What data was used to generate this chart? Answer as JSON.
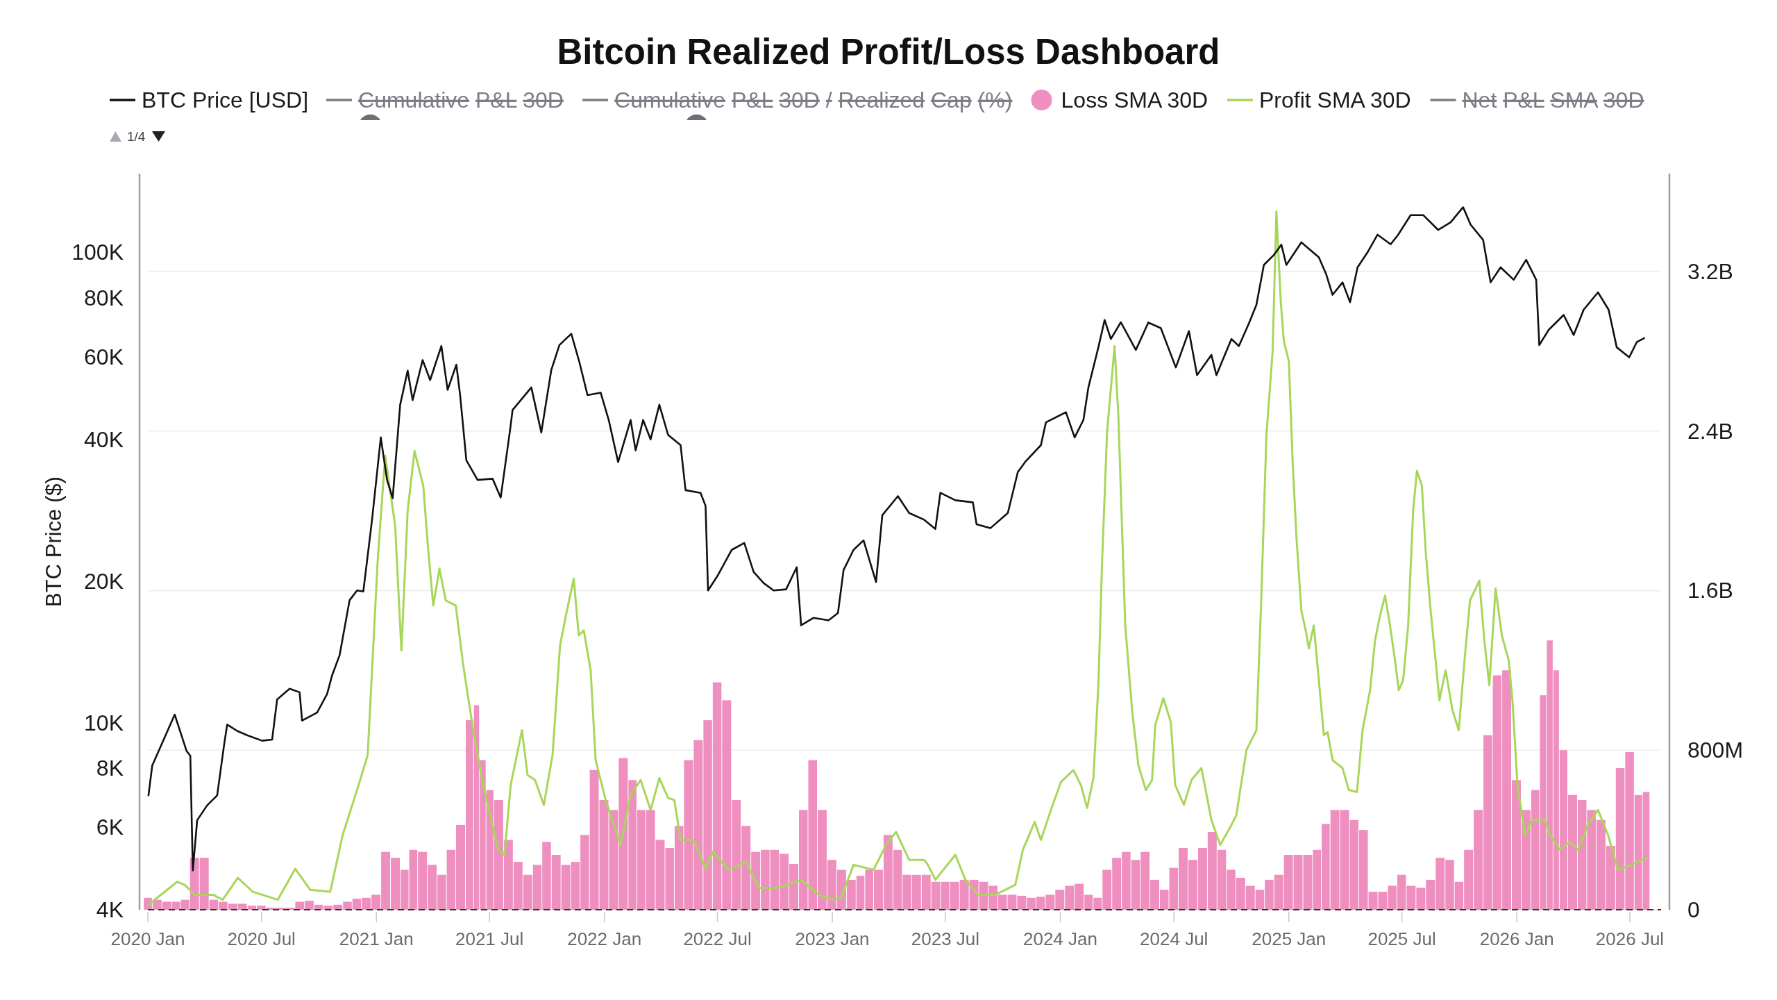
{
  "chart_data": {
    "type": "line",
    "title": "Bitcoin Realized Profit/Loss Dashboard",
    "ylabel": "BTC Price ($)",
    "legend": "top",
    "grid": "y2",
    "log": "y",
    "xlim": [
      "2020-01-01",
      "2026-08-20"
    ],
    "xticks": [
      {
        "value": "2020-01",
        "label": "2020 Jan"
      },
      {
        "value": "2020-07",
        "label": "2020 Jul"
      },
      {
        "value": "2021-01",
        "label": "2021 Jan"
      },
      {
        "value": "2021-07",
        "label": "2021 Jul"
      },
      {
        "value": "2022-01",
        "label": "2022 Jan"
      },
      {
        "value": "2022-07",
        "label": "2022 Jul"
      },
      {
        "value": "2023-01",
        "label": "2023 Jan"
      },
      {
        "value": "2023-07",
        "label": "2023 Jul"
      },
      {
        "value": "2024-01",
        "label": "2024 Jan"
      },
      {
        "value": "2024-07",
        "label": "2024 Jul"
      },
      {
        "value": "2025-01",
        "label": "2025 Jan"
      },
      {
        "value": "2025-07",
        "label": "2025 Jul"
      },
      {
        "value": "2026-01",
        "label": "2026 Jan"
      },
      {
        "value": "2026-07",
        "label": "2026 Jul"
      }
    ],
    "ylim": [
      4000,
      147000
    ],
    "yticks": [
      {
        "value": 4000,
        "label": "4K"
      },
      {
        "value": 6000,
        "label": "6K"
      },
      {
        "value": 8000,
        "label": "8K"
      },
      {
        "value": 10000,
        "label": "10K"
      },
      {
        "value": 20000,
        "label": "20K"
      },
      {
        "value": 40000,
        "label": "40K"
      },
      {
        "value": 60000,
        "label": "60K"
      },
      {
        "value": 80000,
        "label": "80K"
      },
      {
        "value": 100000,
        "label": "100K"
      }
    ],
    "y2lim": [
      0,
      3690000000
    ],
    "y2ticks": [
      0,
      {
        "value": 800000000,
        "label": "800M"
      },
      {
        "value": 1600000000,
        "label": "1.6B"
      },
      {
        "value": 2400000000,
        "label": "2.4B"
      },
      {
        "value": 3200000000,
        "label": "3.2B"
      }
    ],
    "ref_lines": [
      {
        "axis": "y2",
        "value": 0,
        "line_style": "dashed",
        "color": "#333333"
      }
    ],
    "annotations": [
      "1/4"
    ],
    "series": [
      {
        "name": "BTC Price [USD]",
        "color": "#111111",
        "x": [
          "2020-01-02",
          "2020-01-08",
          "2020-02-13",
          "2020-03-03",
          "2020-03-09",
          "2020-03-13",
          "2020-03-20",
          "2020-04-05",
          "2020-04-21",
          "2020-05-02",
          "2020-05-07",
          "2020-05-23",
          "2020-06-08",
          "2020-07-02",
          "2020-07-18",
          "2020-07-26",
          "2020-08-15",
          "2020-08-31",
          "2020-09-04",
          "2020-09-28",
          "2020-10-14",
          "2020-10-22",
          "2020-11-03",
          "2020-11-19",
          "2020-12-01",
          "2020-12-11",
          "2020-12-25",
          "2021-01-08",
          "2021-01-18",
          "2021-01-27",
          "2021-02-08",
          "2021-02-20",
          "2021-02-28",
          "2021-03-16",
          "2021-03-28",
          "2021-04-15",
          "2021-04-25",
          "2021-05-09",
          "2021-05-15",
          "2021-05-25",
          "2021-06-12",
          "2021-07-06",
          "2021-07-19",
          "2021-08-03",
          "2021-08-07",
          "2021-08-23",
          "2021-09-06",
          "2021-09-22",
          "2021-10-08",
          "2021-10-21",
          "2021-11-09",
          "2021-11-22",
          "2021-12-05",
          "2021-12-26",
          "2022-01-08",
          "2022-01-23",
          "2022-02-12",
          "2022-02-20",
          "2022-03-04",
          "2022-03-16",
          "2022-03-30",
          "2022-04-13",
          "2022-05-03",
          "2022-05-11",
          "2022-06-04",
          "2022-06-12",
          "2022-06-16",
          "2022-07-02",
          "2022-07-24",
          "2022-08-13",
          "2022-08-28",
          "2022-09-13",
          "2022-09-29",
          "2022-10-19",
          "2022-11-05",
          "2022-11-12",
          "2022-12-02",
          "2022-12-26",
          "2023-01-10",
          "2023-01-19",
          "2023-02-04",
          "2023-02-20",
          "2023-03-12",
          "2023-03-22",
          "2023-04-16",
          "2023-05-04",
          "2023-05-28",
          "2023-06-15",
          "2023-06-23",
          "2023-07-17",
          "2023-08-14",
          "2023-08-20",
          "2023-09-11",
          "2023-10-09",
          "2023-10-25",
          "2023-11-07",
          "2023-12-01",
          "2023-12-09",
          "2024-01-10",
          "2024-01-24",
          "2024-02-07",
          "2024-02-15",
          "2024-03-02",
          "2024-03-12",
          "2024-03-22",
          "2024-04-07",
          "2024-05-01",
          "2024-05-21",
          "2024-06-10",
          "2024-07-04",
          "2024-07-25",
          "2024-08-07",
          "2024-08-30",
          "2024-09-07",
          "2024-10-01",
          "2024-10-13",
          "2024-10-29",
          "2024-11-10",
          "2024-11-22",
          "2024-12-08",
          "2024-12-20",
          "2024-12-28",
          "2025-01-21",
          "2025-02-18",
          "2025-03-02",
          "2025-03-12",
          "2025-03-28",
          "2025-04-09",
          "2025-04-21",
          "2025-05-07",
          "2025-05-23",
          "2025-06-13",
          "2025-06-25",
          "2025-07-15",
          "2025-08-04",
          "2025-08-28",
          "2025-09-17",
          "2025-10-07",
          "2025-10-19",
          "2025-11-08",
          "2025-11-20",
          "2025-12-06",
          "2025-12-27",
          "2026-01-16",
          "2026-02-01",
          "2026-02-06",
          "2026-02-21",
          "2026-03-17",
          "2026-04-02",
          "2026-04-18",
          "2026-05-11",
          "2026-05-28",
          "2026-06-10",
          "2026-06-30",
          "2026-07-12",
          "2026-07-24"
        ],
        "values": [
          7000,
          8100,
          10400,
          8700,
          8500,
          4850,
          6200,
          6670,
          7000,
          8950,
          9900,
          9600,
          9400,
          9150,
          9200,
          11200,
          11800,
          11600,
          10100,
          10500,
          11500,
          12600,
          13900,
          18200,
          19100,
          19000,
          27000,
          40400,
          32800,
          30000,
          47400,
          56000,
          48500,
          59000,
          53500,
          63200,
          51000,
          57700,
          49700,
          36100,
          32800,
          33000,
          30100,
          41900,
          46200,
          49000,
          51600,
          41400,
          56200,
          63500,
          67100,
          58400,
          49700,
          50300,
          44000,
          35800,
          44000,
          37900,
          44000,
          40000,
          47400,
          40900,
          38900,
          31200,
          30800,
          28900,
          19100,
          20600,
          23300,
          24100,
          20900,
          19800,
          19100,
          19200,
          21400,
          16100,
          16700,
          16500,
          17100,
          21100,
          23300,
          24400,
          19900,
          27600,
          30300,
          27900,
          27000,
          25800,
          30800,
          29700,
          29400,
          26400,
          25900,
          27900,
          34100,
          36000,
          38900,
          43500,
          45700,
          40400,
          44000,
          51600,
          62800,
          71800,
          65400,
          71000,
          62000,
          70900,
          69000,
          56900,
          68000,
          54800,
          60500,
          54800,
          65400,
          63200,
          70600,
          77300,
          94000,
          98700,
          103800,
          94000,
          105000,
          97600,
          89600,
          81200,
          86300,
          78300,
          92900,
          100000,
          109000,
          104000,
          109000,
          120000,
          120000,
          111600,
          115800,
          124700,
          114500,
          106300,
          86300,
          92900,
          87400,
          96400,
          87400,
          63500,
          68400,
          73600,
          66700,
          75500,
          82200,
          75500,
          62800,
          59800,
          64400,
          65700
        ]
      },
      {
        "name": "Cumulative P&L 30D"
      },
      {
        "name": "Cumulative P&L 30D / Realized Cap (%)"
      },
      {
        "name": "Loss SMA 30D",
        "type": "bar",
        "axis": "y2",
        "color": "#ee8fbf",
        "x": [
          "2020-01-01",
          "2020-01-15",
          "2020-02-01",
          "2020-02-15",
          "2020-03-01",
          "2020-03-15",
          "2020-04-01",
          "2020-04-15",
          "2020-05-01",
          "2020-05-15",
          "2020-06-01",
          "2020-06-15",
          "2020-07-01",
          "2020-07-15",
          "2020-08-01",
          "2020-08-15",
          "2020-09-01",
          "2020-09-15",
          "2020-10-01",
          "2020-10-15",
          "2020-11-01",
          "2020-11-15",
          "2020-12-01",
          "2020-12-15",
          "2021-01-01",
          "2021-01-15",
          "2021-02-01",
          "2021-02-15",
          "2021-03-01",
          "2021-03-15",
          "2021-04-01",
          "2021-04-15",
          "2021-05-01",
          "2021-05-15",
          "2021-06-01",
          "2021-06-10",
          "2021-06-20",
          "2021-07-01",
          "2021-07-15",
          "2021-08-01",
          "2021-08-15",
          "2021-09-01",
          "2021-09-15",
          "2021-10-01",
          "2021-10-15",
          "2021-11-01",
          "2021-11-15",
          "2021-12-01",
          "2021-12-15",
          "2022-01-01",
          "2022-01-15",
          "2022-02-01",
          "2022-02-15",
          "2022-03-01",
          "2022-03-15",
          "2022-04-01",
          "2022-04-15",
          "2022-05-01",
          "2022-05-15",
          "2022-06-01",
          "2022-06-15",
          "2022-07-01",
          "2022-07-15",
          "2022-08-01",
          "2022-08-15",
          "2022-09-01",
          "2022-09-15",
          "2022-10-01",
          "2022-10-15",
          "2022-11-01",
          "2022-11-15",
          "2022-12-01",
          "2022-12-15",
          "2023-01-01",
          "2023-01-15",
          "2023-02-01",
          "2023-02-15",
          "2023-03-01",
          "2023-03-15",
          "2023-04-01",
          "2023-04-15",
          "2023-05-01",
          "2023-05-15",
          "2023-06-01",
          "2023-06-15",
          "2023-07-01",
          "2023-07-15",
          "2023-08-01",
          "2023-08-15",
          "2023-09-01",
          "2023-09-15",
          "2023-10-01",
          "2023-10-15",
          "2023-11-01",
          "2023-11-15",
          "2023-12-01",
          "2023-12-15",
          "2024-01-01",
          "2024-01-15",
          "2024-02-01",
          "2024-02-15",
          "2024-03-01",
          "2024-03-15",
          "2024-04-01",
          "2024-04-15",
          "2024-05-01",
          "2024-05-15",
          "2024-06-01",
          "2024-06-15",
          "2024-07-01",
          "2024-07-15",
          "2024-08-01",
          "2024-08-15",
          "2024-09-01",
          "2024-09-15",
          "2024-10-01",
          "2024-10-15",
          "2024-11-01",
          "2024-11-15",
          "2024-12-01",
          "2024-12-15",
          "2025-01-01",
          "2025-01-15",
          "2025-02-01",
          "2025-02-15",
          "2025-03-01",
          "2025-03-15",
          "2025-04-01",
          "2025-04-15",
          "2025-05-01",
          "2025-05-15",
          "2025-06-01",
          "2025-06-15",
          "2025-07-01",
          "2025-07-15",
          "2025-08-01",
          "2025-08-15",
          "2025-09-01",
          "2025-09-15",
          "2025-10-01",
          "2025-10-15",
          "2025-11-01",
          "2025-11-15",
          "2025-12-01",
          "2025-12-15",
          "2026-01-01",
          "2026-01-15",
          "2026-02-01",
          "2026-02-12",
          "2026-02-23",
          "2026-03-05",
          "2026-03-15",
          "2026-04-01",
          "2026-04-15",
          "2026-05-01",
          "2026-05-15",
          "2026-06-01",
          "2026-06-15",
          "2026-07-01",
          "2026-07-15",
          "2026-07-27"
        ],
        "values": [
          60000000,
          50000000,
          40000000,
          40000000,
          50000000,
          260000000,
          260000000,
          50000000,
          40000000,
          30000000,
          30000000,
          20000000,
          20000000,
          10000000,
          10000000,
          10000000,
          40000000,
          45000000,
          25000000,
          20000000,
          25000000,
          40000000,
          55000000,
          60000000,
          75000000,
          290000000,
          260000000,
          200000000,
          300000000,
          290000000,
          225000000,
          175000000,
          300000000,
          425000000,
          950000000,
          1025000000,
          750000000,
          600000000,
          550000000,
          350000000,
          240000000,
          175000000,
          225000000,
          340000000,
          275000000,
          225000000,
          240000000,
          375000000,
          700000000,
          550000000,
          500000000,
          760000000,
          650000000,
          500000000,
          500000000,
          350000000,
          310000000,
          420000000,
          750000000,
          850000000,
          950000000,
          1140000000,
          1050000000,
          550000000,
          420000000,
          290000000,
          300000000,
          300000000,
          280000000,
          230000000,
          500000000,
          750000000,
          500000000,
          250000000,
          200000000,
          150000000,
          170000000,
          200000000,
          200000000,
          375000000,
          300000000,
          175000000,
          175000000,
          175000000,
          140000000,
          140000000,
          140000000,
          150000000,
          150000000,
          140000000,
          120000000,
          75000000,
          75000000,
          70000000,
          60000000,
          65000000,
          75000000,
          100000000,
          120000000,
          130000000,
          75000000,
          60000000,
          200000000,
          260000000,
          290000000,
          250000000,
          290000000,
          150000000,
          100000000,
          210000000,
          310000000,
          250000000,
          310000000,
          390000000,
          300000000,
          200000000,
          160000000,
          120000000,
          100000000,
          150000000,
          175000000,
          275000000,
          275000000,
          275000000,
          300000000,
          430000000,
          500000000,
          500000000,
          450000000,
          400000000,
          90000000,
          90000000,
          120000000,
          175000000,
          120000000,
          110000000,
          150000000,
          260000000,
          250000000,
          140000000,
          300000000,
          500000000,
          875000000,
          1175000000,
          1200000000,
          650000000,
          500000000,
          600000000,
          1075000000,
          1350000000,
          1200000000,
          800000000,
          575000000,
          550000000,
          500000000,
          450000000,
          320000000,
          710000000,
          790000000,
          575000000,
          590000000
        ]
      },
      {
        "name": "Profit SMA 30D",
        "axis": "y2",
        "color": "#a8d65a",
        "x": [
          "2020-01-02",
          "2020-01-16",
          "2020-02-17",
          "2020-02-29",
          "2020-03-16",
          "2020-04-14",
          "2020-04-30",
          "2020-05-24",
          "2020-06-17",
          "2020-07-27",
          "2020-08-24",
          "2020-09-17",
          "2020-10-19",
          "2020-11-08",
          "2020-12-02",
          "2020-12-18",
          "2021-01-03",
          "2021-01-15",
          "2021-01-31",
          "2021-02-10",
          "2021-02-20",
          "2021-03-03",
          "2021-03-17",
          "2021-03-25",
          "2021-04-02",
          "2021-04-12",
          "2021-04-22",
          "2021-05-08",
          "2021-05-20",
          "2021-06-05",
          "2021-06-21",
          "2021-07-15",
          "2021-07-25",
          "2021-08-04",
          "2021-08-22",
          "2021-08-31",
          "2021-09-12",
          "2021-09-26",
          "2021-10-10",
          "2021-10-22",
          "2021-11-02",
          "2021-11-13",
          "2021-11-21",
          "2021-11-29",
          "2021-12-10",
          "2021-12-18",
          "2022-01-03",
          "2022-01-27",
          "2022-02-12",
          "2022-02-28",
          "2022-03-16",
          "2022-03-30",
          "2022-04-13",
          "2022-04-23",
          "2022-05-03",
          "2022-05-23",
          "2022-06-12",
          "2022-06-24",
          "2022-07-18",
          "2022-08-16",
          "2022-09-05",
          "2022-10-07",
          "2022-11-12",
          "2022-12-10",
          "2023-01-03",
          "2023-01-15",
          "2023-02-04",
          "2023-03-08",
          "2023-03-28",
          "2023-04-13",
          "2023-05-04",
          "2023-05-28",
          "2023-06-03",
          "2023-06-15",
          "2023-07-17",
          "2023-08-02",
          "2023-08-22",
          "2023-09-19",
          "2023-10-21",
          "2023-11-02",
          "2023-11-21",
          "2023-12-01",
          "2023-12-17",
          "2024-01-02",
          "2024-01-22",
          "2024-02-03",
          "2024-02-13",
          "2024-02-23",
          "2024-03-02",
          "2024-03-08",
          "2024-03-16",
          "2024-03-28",
          "2024-04-03",
          "2024-04-14",
          "2024-04-25",
          "2024-05-05",
          "2024-05-17",
          "2024-05-27",
          "2024-06-01",
          "2024-06-14",
          "2024-06-26",
          "2024-07-03",
          "2024-07-17",
          "2024-07-29",
          "2024-08-14",
          "2024-08-30",
          "2024-09-13",
          "2024-10-01",
          "2024-10-09",
          "2024-10-25",
          "2024-11-10",
          "2024-11-18",
          "2024-11-26",
          "2024-12-06",
          "2024-12-12",
          "2024-12-19",
          "2024-12-24",
          "2025-01-01",
          "2025-01-07",
          "2025-01-13",
          "2025-01-21",
          "2025-01-28",
          "2025-02-02",
          "2025-02-10",
          "2025-02-18",
          "2025-02-26",
          "2025-03-04",
          "2025-03-12",
          "2025-03-28",
          "2025-04-07",
          "2025-04-20",
          "2025-04-29",
          "2025-05-11",
          "2025-05-19",
          "2025-05-27",
          "2025-06-04",
          "2025-06-12",
          "2025-06-20",
          "2025-06-26",
          "2025-07-03",
          "2025-07-11",
          "2025-07-19",
          "2025-07-25",
          "2025-08-02",
          "2025-08-08",
          "2025-08-16",
          "2025-08-24",
          "2025-08-30",
          "2025-09-09",
          "2025-09-20",
          "2025-09-30",
          "2025-10-10",
          "2025-10-18",
          "2025-11-02",
          "2025-11-10",
          "2025-11-18",
          "2025-11-28",
          "2025-12-08",
          "2025-12-19",
          "2025-12-25",
          "2026-01-02",
          "2026-01-14",
          "2026-01-26",
          "2026-02-15",
          "2026-02-23",
          "2026-03-11",
          "2026-03-27",
          "2026-04-09",
          "2026-04-25",
          "2026-05-11",
          "2026-05-27",
          "2026-06-12",
          "2026-07-03",
          "2026-07-28"
        ],
        "values": [
          25000000,
          60000000,
          140000000,
          125000000,
          75000000,
          75000000,
          50000000,
          160000000,
          90000000,
          50000000,
          205000000,
          100000000,
          90000000,
          375000000,
          610000000,
          775000000,
          1750000000,
          2275000000,
          1925000000,
          1300000000,
          2000000000,
          2300000000,
          2125000000,
          1800000000,
          1525000000,
          1710000000,
          1550000000,
          1525000000,
          1225000000,
          900000000,
          625000000,
          300000000,
          275000000,
          625000000,
          900000000,
          675000000,
          650000000,
          525000000,
          775000000,
          1325000000,
          1500000000,
          1660000000,
          1375000000,
          1400000000,
          1200000000,
          750000000,
          550000000,
          325000000,
          575000000,
          650000000,
          500000000,
          660000000,
          560000000,
          550000000,
          350000000,
          350000000,
          210000000,
          290000000,
          200000000,
          240000000,
          110000000,
          110000000,
          150000000,
          75000000,
          50000000,
          60000000,
          225000000,
          200000000,
          325000000,
          390000000,
          250000000,
          250000000,
          225000000,
          150000000,
          275000000,
          150000000,
          75000000,
          75000000,
          125000000,
          300000000,
          440000000,
          350000000,
          500000000,
          640000000,
          700000000,
          625000000,
          510000000,
          660000000,
          1125000000,
          1750000000,
          2400000000,
          2825000000,
          2475000000,
          1425000000,
          1000000000,
          725000000,
          600000000,
          650000000,
          925000000,
          1060000000,
          940000000,
          625000000,
          525000000,
          650000000,
          710000000,
          450000000,
          325000000,
          425000000,
          475000000,
          800000000,
          900000000,
          1575000000,
          2375000000,
          2800000000,
          3500000000,
          3050000000,
          2850000000,
          2750000000,
          2250000000,
          1875000000,
          1500000000,
          1400000000,
          1310000000,
          1425000000,
          1150000000,
          875000000,
          890000000,
          750000000,
          710000000,
          600000000,
          590000000,
          900000000,
          1100000000,
          1350000000,
          1475000000,
          1575000000,
          1425000000,
          1250000000,
          1100000000,
          1150000000,
          1425000000,
          2000000000,
          2200000000,
          2125000000,
          1800000000,
          1500000000,
          1250000000,
          1050000000,
          1200000000,
          1000000000,
          900000000,
          1275000000,
          1550000000,
          1650000000,
          1350000000,
          1125000000,
          1610000000,
          1375000000,
          1250000000,
          1050000000,
          625000000,
          375000000,
          450000000,
          450000000,
          375000000,
          300000000,
          340000000,
          300000000,
          425000000,
          500000000,
          375000000,
          200000000,
          225000000,
          260000000
        ]
      },
      {
        "name": "Net P&L SMA 30D"
      }
    ]
  }
}
